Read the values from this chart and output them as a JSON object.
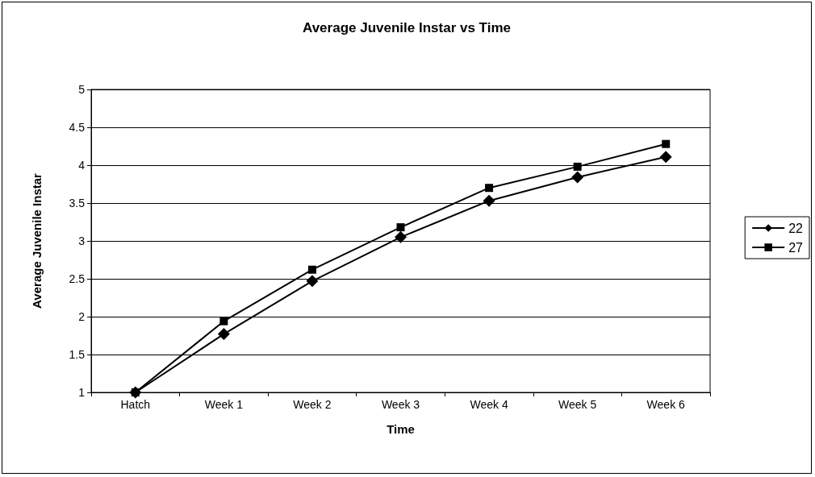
{
  "chart_data": {
    "type": "line",
    "title": "Average Juvenile Instar vs Time",
    "xlabel": "Time",
    "ylabel": "Average Juvenile Instar",
    "categories": [
      "Hatch",
      "Week 1",
      "Week 2",
      "Week 3",
      "Week 4",
      "Week 5",
      "Week 6"
    ],
    "series": [
      {
        "name": "22",
        "color": "#000000",
        "marker": "diamond",
        "values": [
          1,
          1.77,
          2.47,
          3.05,
          3.53,
          3.84,
          4.11
        ]
      },
      {
        "name": "27",
        "color": "#000000",
        "marker": "square",
        "values": [
          1,
          1.94,
          2.62,
          3.18,
          3.7,
          3.98,
          4.28
        ]
      }
    ],
    "ylim": [
      1,
      5
    ],
    "yticks": [
      1,
      1.5,
      2,
      2.5,
      3,
      3.5,
      4,
      4.5,
      5
    ],
    "grid": "y",
    "legend": "right",
    "line_style": "solid"
  }
}
